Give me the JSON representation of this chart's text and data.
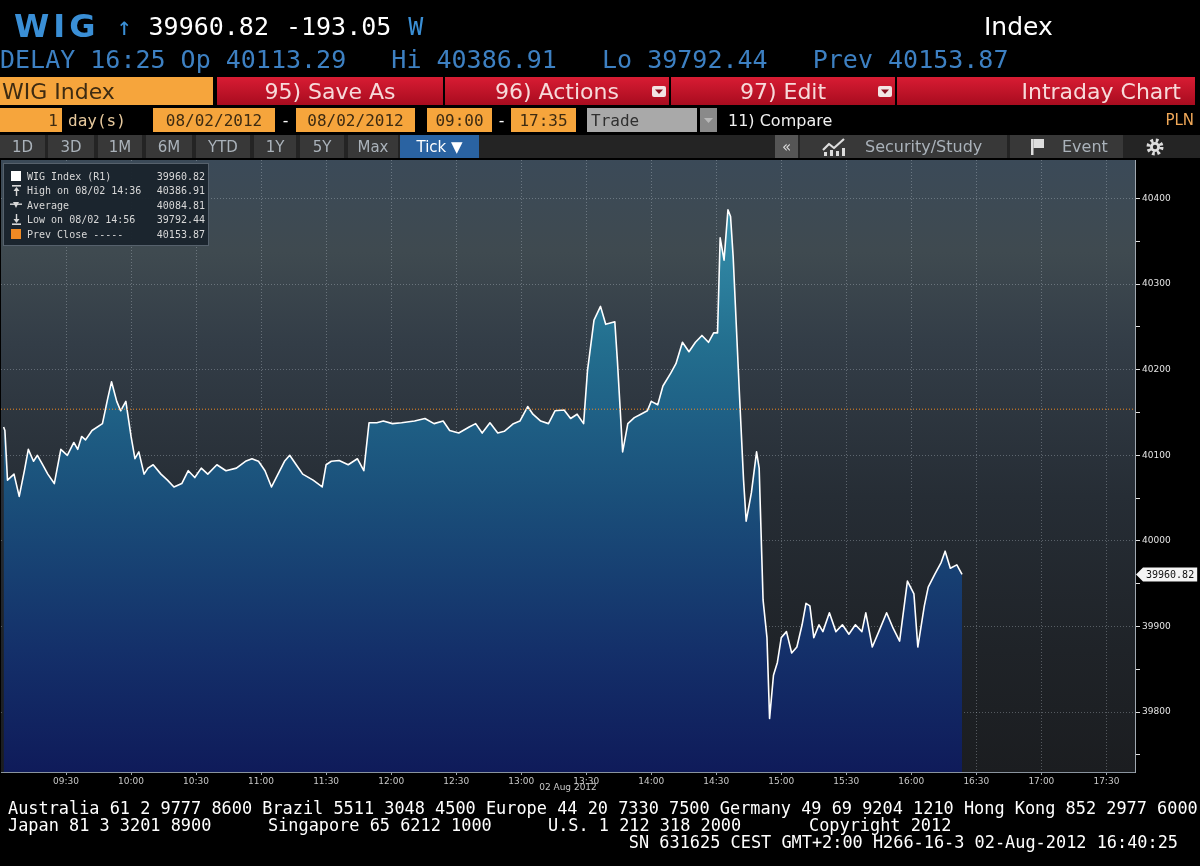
{
  "chart_data": {
    "type": "area",
    "title": "WIG ↑ 39960.82 -193.05 W",
    "subtitle": "DELAY 16:25 Op 40113.29   Hi 40386.91   Lo 39792.44   Prev 40153.87",
    "xlabel": "02 Aug 2012",
    "annotations": [
      "Index",
      "WIG Index",
      "95) Save As",
      "96) Actions",
      "97) Edit",
      "Intraday Chart",
      "1",
      "day(s)",
      "08/02/2012",
      "-",
      "08/02/2012",
      "09:00",
      "-",
      "17:35",
      "Trade",
      "11) Compare",
      "PLN",
      "1D",
      "3D",
      "1M",
      "6M",
      "YTD",
      "1Y",
      "5Y",
      "Max",
      "Tick ▼",
      "«",
      "Security/Study",
      "Event",
      "39960.82",
      "High on 08/02 14:36",
      "40386.91",
      "Average",
      "40084.81",
      "Low on 08/02 14:56",
      "39792.44",
      "39960.82",
      "Australia 61 2 9777 8600 Brazil 5511 3048 4500 Europe 44 20 7330 7500 Germany 49 69 9204 1210 Hong Kong 852 2977 6000",
      "Japan 81 3 3201 8900",
      "Singapore 65 6212 1000",
      "U.S. 1 212 318 2000",
      "Copyright 2012",
      "SN 631625 CEST GMT+2:00 H266-16-3 02-Aug-2012 16:40:25",
      "40153.87"
    ],
    "x": [
      9.02,
      9.03,
      9.05,
      9.1,
      9.14,
      9.18,
      9.21,
      9.25,
      9.28,
      9.32,
      9.36,
      9.41,
      9.46,
      9.51,
      9.56,
      9.59,
      9.62,
      9.65,
      9.7,
      9.78,
      9.82,
      9.85,
      9.89,
      9.92,
      9.96,
      10.0,
      10.03,
      10.06,
      10.1,
      10.13,
      10.17,
      10.23,
      10.28,
      10.33,
      10.39,
      10.44,
      10.49,
      10.54,
      10.59,
      10.66,
      10.73,
      10.81,
      10.88,
      10.93,
      10.98,
      11.03,
      11.08,
      11.13,
      11.18,
      11.22,
      11.27,
      11.32,
      11.4,
      11.47,
      11.5,
      11.54,
      11.6,
      11.67,
      11.74,
      11.79,
      11.83,
      11.89,
      11.94,
      12.01,
      12.08,
      12.18,
      12.26,
      12.33,
      12.4,
      12.45,
      12.52,
      12.6,
      12.65,
      12.7,
      12.76,
      12.82,
      12.87,
      12.94,
      12.99,
      13.05,
      13.09,
      13.15,
      13.21,
      13.26,
      13.33,
      13.38,
      13.43,
      13.48,
      13.51,
      13.56,
      13.61,
      13.65,
      13.72,
      13.74,
      13.78,
      13.82,
      13.87,
      13.92,
      13.97,
      14.0,
      14.05,
      14.09,
      14.15,
      14.19,
      14.24,
      14.29,
      14.34,
      14.39,
      14.44,
      14.48,
      14.51,
      14.53,
      14.56,
      14.59,
      14.61,
      14.63,
      14.68,
      14.71,
      14.73,
      14.77,
      14.81,
      14.83,
      14.86,
      14.89,
      14.91,
      14.94,
      14.97,
      15.0,
      15.04,
      15.08,
      15.12,
      15.16,
      15.19,
      15.22,
      15.25,
      15.29,
      15.32,
      15.37,
      15.42,
      15.47,
      15.52,
      15.57,
      15.62,
      15.65,
      15.7,
      15.75,
      15.81,
      15.86,
      15.91,
      15.97,
      16.02,
      16.05,
      16.1,
      16.13,
      16.18,
      16.23,
      16.26,
      16.3,
      16.35,
      16.39
    ],
    "series": [
      {
        "name": "WIG Index (R1)",
        "color": "#ffffff",
        "values": [
          40133,
          40129,
          40071,
          40078,
          40052,
          40082,
          40107,
          40093,
          40100,
          40089,
          40078,
          40067,
          40107,
          40100,
          40115,
          40107,
          40122,
          40118,
          40129,
          40137,
          40166,
          40186,
          40163,
          40152,
          40163,
          40122,
          40096,
          40104,
          40078,
          40085,
          40089,
          40078,
          40071,
          40063,
          40067,
          40082,
          40074,
          40085,
          40078,
          40089,
          40082,
          40085,
          40093,
          40096,
          40093,
          40082,
          40063,
          40078,
          40093,
          40100,
          40089,
          40078,
          40071,
          40063,
          40089,
          40093,
          40094,
          40089,
          40096,
          40082,
          40138,
          40138,
          40140,
          40137,
          40138,
          40140,
          40143,
          40137,
          40140,
          40129,
          40126,
          40133,
          40137,
          40126,
          40138,
          40126,
          40128,
          40137,
          40140,
          40157,
          40148,
          40140,
          40137,
          40152,
          40153,
          40143,
          40148,
          40137,
          40199,
          40258,
          40274,
          40253,
          40256,
          40210,
          40104,
          40137,
          40144,
          40148,
          40152,
          40163,
          40159,
          40181,
          40196,
          40207,
          40232,
          40221,
          40232,
          40240,
          40232,
          40243,
          40243,
          40354,
          40328,
          40386.91,
          40379,
          40332,
          40166,
          40071,
          40023,
          40056,
          40104,
          40085,
          39931,
          39887,
          39792.44,
          39843,
          39858,
          39887,
          39894,
          39869,
          39876,
          39902,
          39927,
          39924,
          39887,
          39902,
          39894,
          39916,
          39894,
          39902,
          39891,
          39902,
          39894,
          39916,
          39876,
          39894,
          39916,
          39898,
          39883,
          39953,
          39938,
          39876,
          39924,
          39946,
          39961,
          39975,
          39988,
          39968,
          39972,
          39960.82
        ]
      }
    ],
    "xlim": [
      9,
      17.72
    ],
    "xticks": [
      {
        "value": 9.5,
        "label": "09:30"
      },
      {
        "value": 10,
        "label": "10:00"
      },
      {
        "value": 10.5,
        "label": "10:30"
      },
      {
        "value": 11,
        "label": "11:00"
      },
      {
        "value": 11.5,
        "label": "11:30"
      },
      {
        "value": 12,
        "label": "12:00"
      },
      {
        "value": 12.5,
        "label": "12:30"
      },
      {
        "value": 13,
        "label": "13:00"
      },
      {
        "value": 13.5,
        "label": "13:30"
      },
      {
        "value": 14,
        "label": "14:00"
      },
      {
        "value": 14.5,
        "label": "14:30"
      },
      {
        "value": 15,
        "label": "15:00"
      },
      {
        "value": 15.5,
        "label": "15:30"
      },
      {
        "value": 16,
        "label": "16:00"
      },
      {
        "value": 16.5,
        "label": "16:30"
      },
      {
        "value": 17,
        "label": "17:00"
      },
      {
        "value": 17.5,
        "label": "17:30"
      }
    ],
    "ylim": [
      39730,
      40445
    ],
    "yticks": [
      {
        "value": 39750,
        "label": null
      },
      39800,
      {
        "value": 39850,
        "label": null
      },
      39900,
      {
        "value": 39950,
        "label": null
      },
      40000,
      {
        "value": 40050,
        "label": null
      },
      40100,
      {
        "value": 40150,
        "label": null
      },
      40200,
      {
        "value": 40250,
        "label": null
      },
      40300,
      {
        "value": 40350,
        "label": null
      },
      40400
    ],
    "ref_lines": [
      {
        "axis": "y",
        "value": 40153.87,
        "label": "Prev Close -----",
        "color": "#f08a24",
        "line_style": "dotted"
      }
    ],
    "grid": true,
    "legend": "top left"
  }
}
